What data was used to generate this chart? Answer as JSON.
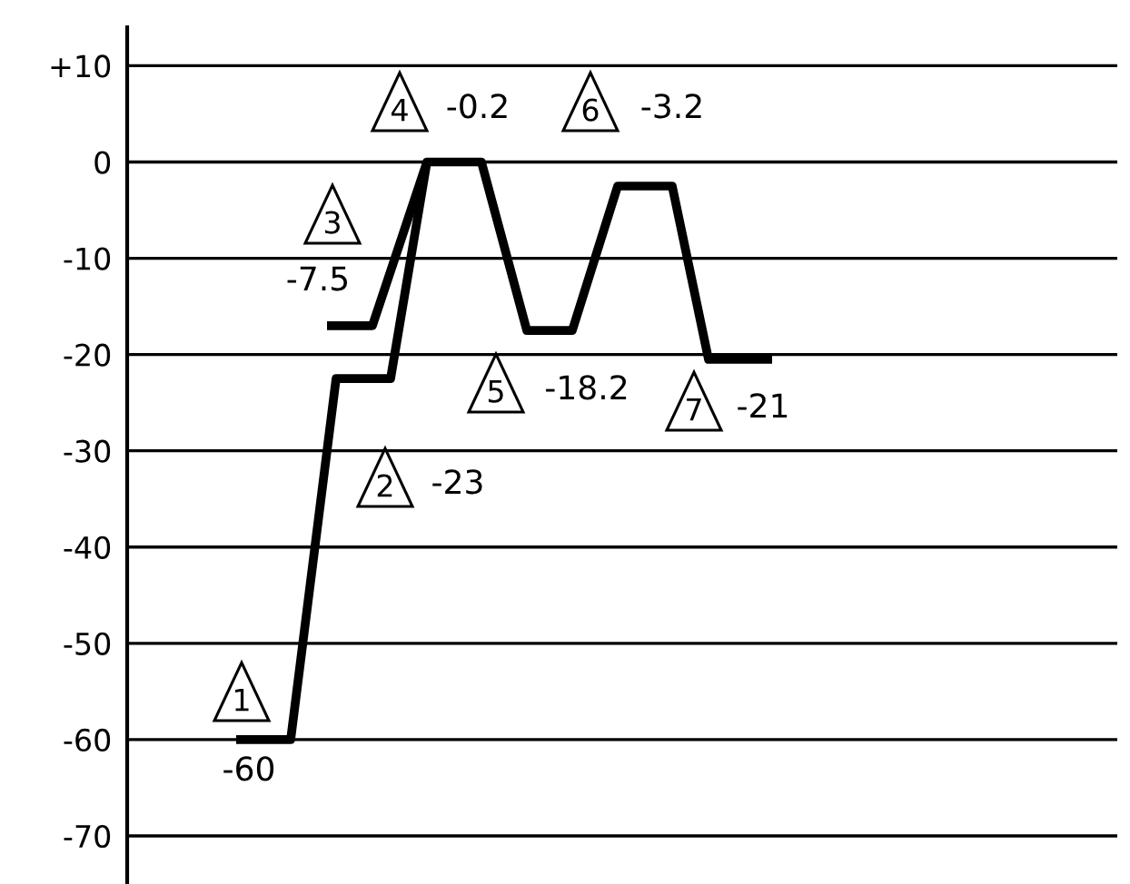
{
  "chart_data": {
    "type": "line",
    "categories": [
      null,
      null,
      null,
      null,
      null,
      null,
      null,
      null,
      null,
      null,
      null,
      null,
      null,
      null,
      null,
      null,
      null,
      null,
      null,
      null,
      null,
      null,
      null,
      null,
      null,
      null,
      null,
      null,
      null,
      null,
      null,
      null,
      null,
      null,
      null,
      null,
      null,
      null,
      null,
      null,
      null,
      null,
      null,
      null,
      null,
      null,
      null,
      null,
      null,
      null,
      null,
      null,
      null,
      null,
      null,
      null,
      null,
      null,
      null,
      null,
      null,
      null,
      null,
      null,
      null,
      null,
      null,
      null,
      null,
      null,
      null,
      null,
      null,
      null,
      null,
      null,
      null,
      null,
      null,
      null,
      null,
      null,
      null,
      null,
      null,
      null,
      null,
      null,
      null,
      null,
      null,
      null,
      null,
      null,
      null,
      null,
      null,
      null,
      null,
      null,
      null,
      null,
      null,
      null,
      null,
      null,
      null,
      null,
      null,
      null
    ],
    "series": [
      {
        "color": "#000000",
        "values": [
          null,
          null,
          null,
          null,
          null,
          null,
          null,
          null,
          null,
          null,
          null,
          null,
          -60,
          null,
          null,
          null,
          null,
          null,
          -60,
          null,
          null,
          null,
          null,
          -22.5,
          null,
          null,
          null,
          null,
          null,
          -22.5,
          null,
          null,
          null,
          0,
          null,
          null,
          null,
          null,
          null,
          0,
          null,
          null,
          null,
          null,
          -17.5,
          null,
          null,
          null,
          null,
          -17.5,
          null,
          null,
          null,
          null,
          -2.5,
          null,
          null,
          null,
          null,
          null,
          -2.5,
          null,
          null,
          null,
          -20.5,
          null,
          null,
          null,
          null,
          null,
          null,
          -20.5,
          null,
          null,
          null,
          null,
          null,
          null,
          null,
          null,
          null,
          null,
          null,
          null,
          null,
          null,
          null,
          null,
          null,
          null,
          null,
          null,
          null,
          null,
          null,
          null,
          null,
          null,
          null,
          null,
          null,
          null,
          null,
          null,
          null,
          null,
          null,
          null,
          null,
          null
        ]
      },
      {
        "color": "#000000",
        "values": [
          null,
          null,
          null,
          null,
          null,
          null,
          null,
          null,
          null,
          null,
          null,
          null,
          null,
          null,
          null,
          null,
          null,
          null,
          null,
          null,
          null,
          null,
          -17,
          null,
          null,
          null,
          null,
          -17,
          null,
          null,
          null,
          null,
          null,
          0,
          null,
          null,
          null,
          null,
          null,
          null,
          null,
          null,
          null,
          null,
          null,
          null,
          null,
          null,
          null,
          null,
          null,
          null,
          null,
          null,
          null,
          null,
          null,
          null,
          null,
          null,
          null,
          null,
          null,
          null,
          null,
          null,
          null,
          null,
          null,
          null,
          null,
          null,
          null,
          null,
          null,
          null,
          null,
          null,
          null,
          null,
          null,
          null,
          null,
          null,
          null,
          null,
          null,
          null,
          null,
          null,
          null,
          null,
          null,
          null,
          null,
          null,
          null,
          null,
          null,
          null,
          null,
          null,
          null,
          null,
          null,
          null,
          null,
          null,
          null,
          null
        ]
      }
    ],
    "ylim": [
      -75,
      14
    ],
    "yticks": [
      {
        "value": 10,
        "label": "+10"
      },
      0,
      -10,
      -20,
      -30,
      -40,
      -50,
      -60,
      -70
    ],
    "tick_labels": "y",
    "grid": "y",
    "line_style": "solid",
    "annotations": [
      "1",
      "-60",
      "2",
      "-23",
      "3",
      "-7.5",
      "4",
      "-0.2",
      "5",
      "-18.2",
      "6",
      "-3.2",
      "7",
      "-21"
    ]
  }
}
